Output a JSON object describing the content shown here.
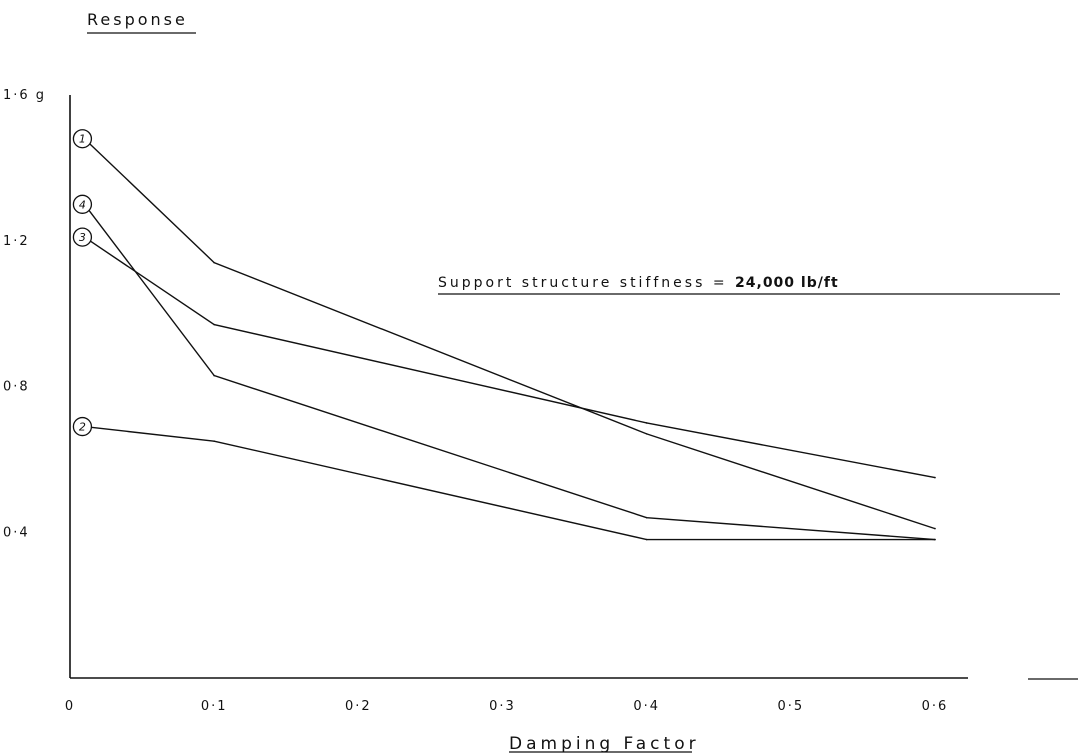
{
  "chart_data": {
    "type": "line",
    "ylabel": "Response",
    "xlabel": "Damping Factor",
    "xlim": [
      0,
      0.6
    ],
    "ylim": [
      0,
      1.6
    ],
    "x_ticks": [
      {
        "value": 0,
        "label": "0"
      },
      {
        "value": 0.1,
        "label": "0·1"
      },
      {
        "value": 0.2,
        "label": "0·2"
      },
      {
        "value": 0.3,
        "label": "0·3"
      },
      {
        "value": 0.4,
        "label": "0·4"
      },
      {
        "value": 0.5,
        "label": "0·5"
      },
      {
        "value": 0.6,
        "label": "0·6"
      }
    ],
    "y_ticks": [
      {
        "value": 0.4,
        "label": "0·4"
      },
      {
        "value": 0.8,
        "label": "0·8"
      },
      {
        "value": 1.2,
        "label": "1·2"
      },
      {
        "value": 1.6,
        "label": "1·6 g"
      }
    ],
    "grid": false,
    "annotation": {
      "prefix": "Support structure stiffness = ",
      "value": "24,000 lb/ft"
    },
    "series": [
      {
        "name": "1",
        "x": [
          0.01,
          0.1,
          0.4,
          0.6
        ],
        "y": [
          1.48,
          1.14,
          0.67,
          0.41
        ]
      },
      {
        "name": "2",
        "x": [
          0.01,
          0.1,
          0.4,
          0.6
        ],
        "y": [
          0.69,
          0.65,
          0.38,
          0.38
        ]
      },
      {
        "name": "3",
        "x": [
          0.01,
          0.1,
          0.4,
          0.6
        ],
        "y": [
          1.21,
          0.97,
          0.7,
          0.55
        ]
      },
      {
        "name": "4",
        "x": [
          0.01,
          0.1,
          0.4,
          0.6
        ],
        "y": [
          1.3,
          0.83,
          0.44,
          0.38
        ]
      }
    ]
  }
}
